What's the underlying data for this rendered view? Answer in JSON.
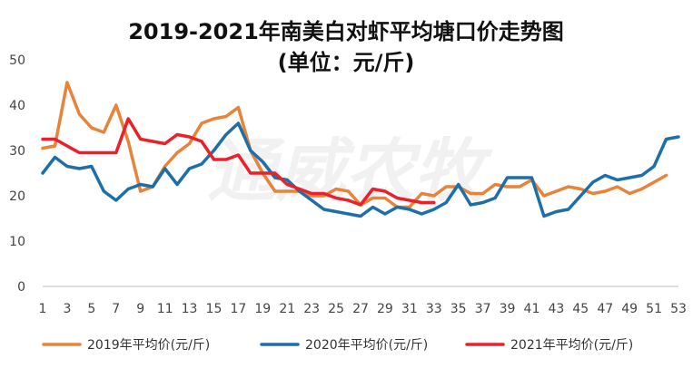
{
  "chart_data": {
    "type": "line",
    "title": "2019-2021年南美白对虾平均塘口价走势图",
    "subtitle": "(单位：元/斤)",
    "watermark": "通威农牧",
    "xlabel": "",
    "ylabel": "",
    "x": [
      1,
      2,
      3,
      4,
      5,
      6,
      7,
      8,
      9,
      10,
      11,
      12,
      13,
      14,
      15,
      16,
      17,
      18,
      19,
      20,
      21,
      22,
      23,
      24,
      25,
      26,
      27,
      28,
      29,
      30,
      31,
      32,
      33,
      34,
      35,
      36,
      37,
      38,
      39,
      40,
      41,
      42,
      43,
      44,
      45,
      46,
      47,
      48,
      49,
      50,
      51,
      52,
      53
    ],
    "x_tick_labels": [
      "1",
      "3",
      "5",
      "7",
      "9",
      "11",
      "13",
      "15",
      "17",
      "19",
      "21",
      "23",
      "25",
      "27",
      "29",
      "31",
      "33",
      "35",
      "37",
      "39",
      "41",
      "43",
      "45",
      "47",
      "49",
      "51",
      "53"
    ],
    "x_tick_values": [
      1,
      3,
      5,
      7,
      9,
      11,
      13,
      15,
      17,
      19,
      21,
      23,
      25,
      27,
      29,
      31,
      33,
      35,
      37,
      39,
      41,
      43,
      45,
      47,
      49,
      51,
      53
    ],
    "xlim": [
      1,
      53
    ],
    "y_tick_labels": [
      "0",
      "10",
      "20",
      "30",
      "40",
      "50"
    ],
    "y_tick_values": [
      0,
      10,
      20,
      30,
      40,
      50
    ],
    "ylim": [
      0,
      50
    ],
    "grid": false,
    "legend_position": "bottom",
    "series": [
      {
        "name": "2019年平均价(元/斤)",
        "color": "#E8833A",
        "values": [
          30.5,
          31,
          45,
          38,
          35,
          34,
          40,
          32,
          21,
          22,
          26.5,
          29.5,
          31.5,
          36,
          37,
          37.5,
          39.5,
          30,
          25,
          21,
          21,
          21,
          20,
          20,
          21.5,
          21,
          18,
          19.5,
          19.5,
          17.5,
          17.5,
          20.5,
          20,
          22,
          22,
          20.5,
          20.5,
          22.5,
          22,
          22,
          23.5,
          20,
          21,
          22,
          21.5,
          20.5,
          21,
          22,
          20.5,
          21.5,
          23,
          24.5,
          null
        ]
      },
      {
        "name": "2020年平均价(元/斤)",
        "color": "#1E6FA8",
        "values": [
          25,
          28.5,
          26.5,
          26,
          26.5,
          21,
          19,
          21.5,
          22.5,
          22,
          26,
          22.5,
          26,
          27,
          30,
          33.5,
          36,
          30,
          27.5,
          24,
          23.5,
          21,
          19,
          17,
          16.5,
          16,
          15.5,
          17.5,
          16,
          17.5,
          17,
          16,
          17,
          18.5,
          22.5,
          18,
          18.5,
          19.5,
          24,
          24,
          24,
          15.5,
          16.5,
          17,
          20,
          23,
          24.5,
          23.5,
          24,
          24.5,
          26.5,
          32.5,
          33
        ]
      },
      {
        "name": "2021年平均价(元/斤)",
        "color": "#E8212A",
        "values": [
          32.5,
          32.5,
          31,
          29.5,
          29.5,
          29.5,
          29.5,
          37,
          32.5,
          32,
          31.5,
          33.5,
          33,
          32,
          28,
          28,
          29,
          25,
          25,
          25,
          22.5,
          21.5,
          20.5,
          20.5,
          19.5,
          19,
          18,
          21.5,
          21,
          19.5,
          19,
          18.5,
          18.5,
          null,
          null,
          null,
          null,
          null,
          null,
          null,
          null,
          null,
          null,
          null,
          null,
          null,
          null,
          null,
          null,
          null,
          null,
          null,
          null
        ]
      }
    ]
  }
}
